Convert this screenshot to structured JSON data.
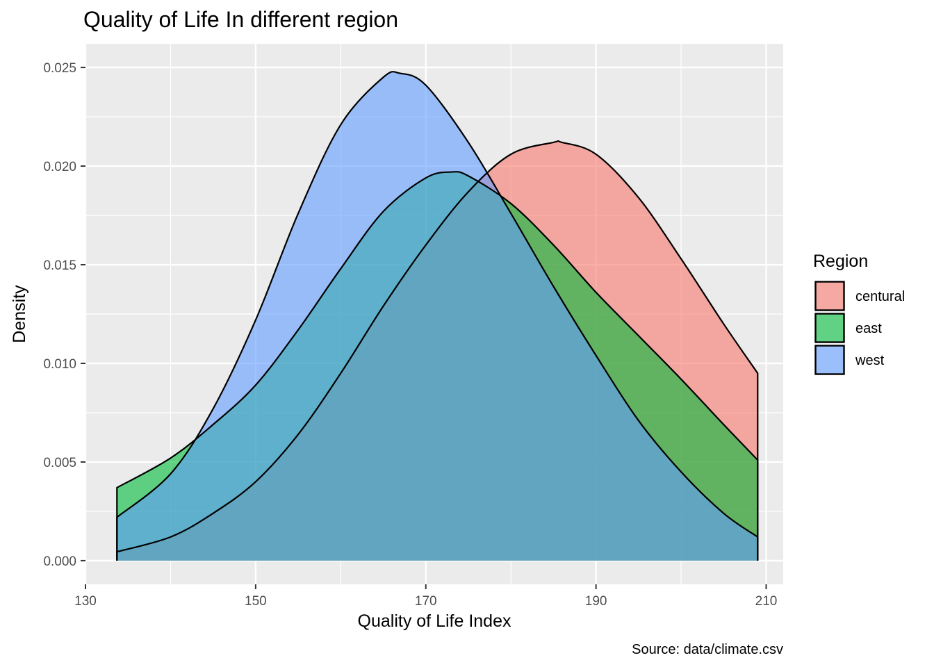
{
  "chart_data": {
    "type": "area",
    "title": "Quality of Life In different region",
    "xlabel": "Quality of Life Index",
    "ylabel": "Density",
    "caption": "Source: data/climate.csv",
    "xlim": [
      130,
      212
    ],
    "ylim": [
      -0.0012,
      0.0262
    ],
    "x_ticks": [
      130,
      150,
      170,
      190,
      210
    ],
    "y_ticks": [
      0.0,
      0.005,
      0.01,
      0.015,
      0.02,
      0.025
    ],
    "x_tick_labels": [
      "130",
      "150",
      "170",
      "190",
      "210"
    ],
    "y_tick_labels": [
      "0.000",
      "0.005",
      "0.010",
      "0.015",
      "0.020",
      "0.025"
    ],
    "grid": true,
    "legend": {
      "title": "Region",
      "position": "right",
      "labels": [
        "centural",
        "east",
        "west"
      ]
    },
    "series": [
      {
        "name": "centural",
        "color": "#F8766D",
        "x": [
          133.7,
          140,
          145,
          150,
          155,
          160,
          165,
          170,
          175,
          180,
          185,
          186,
          190,
          195,
          200,
          205,
          209
        ],
        "y": [
          0.00045,
          0.0012,
          0.0024,
          0.004,
          0.0064,
          0.0095,
          0.0129,
          0.016,
          0.0187,
          0.0206,
          0.0212,
          0.0212,
          0.0206,
          0.0184,
          0.0153,
          0.012,
          0.0095
        ]
      },
      {
        "name": "east",
        "color": "#00BA38",
        "x": [
          133.7,
          140,
          145,
          150,
          155,
          160,
          165,
          170,
          173,
          175,
          180,
          185,
          190,
          195,
          200,
          205,
          209
        ],
        "y": [
          0.0037,
          0.0052,
          0.0069,
          0.0089,
          0.0117,
          0.0148,
          0.0177,
          0.0194,
          0.0197,
          0.0195,
          0.0181,
          0.016,
          0.0136,
          0.0114,
          0.0092,
          0.0069,
          0.0051
        ]
      },
      {
        "name": "west",
        "color": "#619CFF",
        "x": [
          133.7,
          140,
          145,
          150,
          155,
          160,
          165,
          167,
          170,
          175,
          180,
          185,
          190,
          195,
          200,
          205,
          209
        ],
        "y": [
          0.0022,
          0.0044,
          0.0077,
          0.0122,
          0.0176,
          0.0221,
          0.0245,
          0.0247,
          0.0241,
          0.0212,
          0.0176,
          0.0139,
          0.0104,
          0.0071,
          0.0045,
          0.0024,
          0.0012
        ]
      }
    ]
  }
}
